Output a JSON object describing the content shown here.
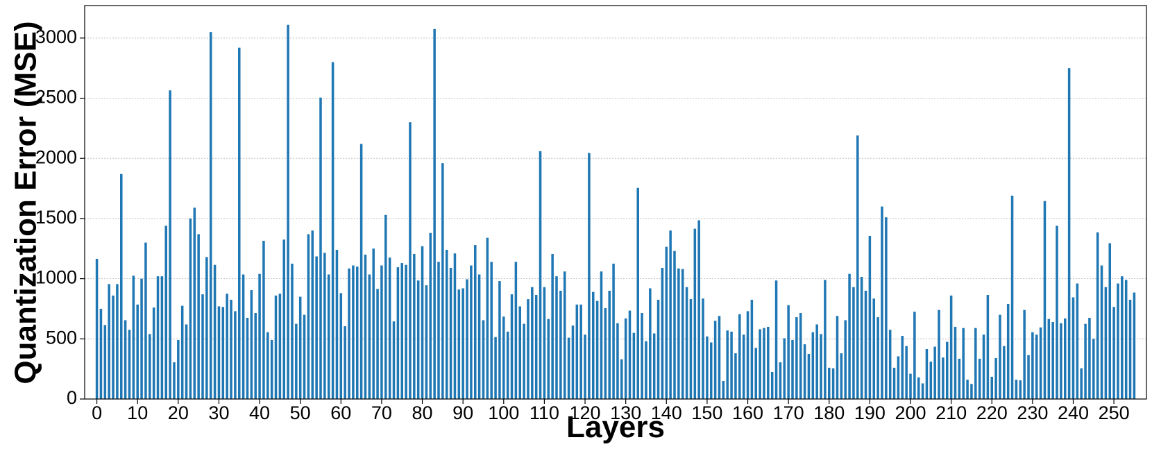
{
  "chart_data": {
    "type": "bar",
    "xlabel": "Layers",
    "ylabel": "Quantization Error (MSE)",
    "color": "#1f77b4",
    "grid": true,
    "xlim": [
      -3,
      258
    ],
    "ylim": [
      0,
      3270
    ],
    "xticks": [
      0,
      10,
      20,
      30,
      40,
      50,
      60,
      70,
      80,
      90,
      100,
      110,
      120,
      130,
      140,
      150,
      160,
      170,
      180,
      190,
      200,
      210,
      220,
      230,
      240,
      250
    ],
    "yticks": [
      0,
      500,
      1000,
      1500,
      2000,
      2500,
      3000
    ],
    "x": [
      0,
      1,
      2,
      3,
      4,
      5,
      6,
      7,
      8,
      9,
      10,
      11,
      12,
      13,
      14,
      15,
      16,
      17,
      18,
      19,
      20,
      21,
      22,
      23,
      24,
      25,
      26,
      27,
      28,
      29,
      30,
      31,
      32,
      33,
      34,
      35,
      36,
      37,
      38,
      39,
      40,
      41,
      42,
      43,
      44,
      45,
      46,
      47,
      48,
      49,
      50,
      51,
      52,
      53,
      54,
      55,
      56,
      57,
      58,
      59,
      60,
      61,
      62,
      63,
      64,
      65,
      66,
      67,
      68,
      69,
      70,
      71,
      72,
      73,
      74,
      75,
      76,
      77,
      78,
      79,
      80,
      81,
      82,
      83,
      84,
      85,
      86,
      87,
      88,
      89,
      90,
      91,
      92,
      93,
      94,
      95,
      96,
      97,
      98,
      99,
      100,
      101,
      102,
      103,
      104,
      105,
      106,
      107,
      108,
      109,
      110,
      111,
      112,
      113,
      114,
      115,
      116,
      117,
      118,
      119,
      120,
      121,
      122,
      123,
      124,
      125,
      126,
      127,
      128,
      129,
      130,
      131,
      132,
      133,
      134,
      135,
      136,
      137,
      138,
      139,
      140,
      141,
      142,
      143,
      144,
      145,
      146,
      147,
      148,
      149,
      150,
      151,
      152,
      153,
      154,
      155,
      156,
      157,
      158,
      159,
      160,
      161,
      162,
      163,
      164,
      165,
      166,
      167,
      168,
      169,
      170,
      171,
      172,
      173,
      174,
      175,
      176,
      177,
      178,
      179,
      180,
      181,
      182,
      183,
      184,
      185,
      186,
      187,
      188,
      189,
      190,
      191,
      192,
      193,
      194,
      195,
      196,
      197,
      198,
      199,
      200,
      201,
      202,
      203,
      204,
      205,
      206,
      207,
      208,
      209,
      210,
      211,
      212,
      213,
      214,
      215,
      216,
      217,
      218,
      219,
      220,
      221,
      222,
      223,
      224,
      225,
      226,
      227,
      228,
      229,
      230,
      231,
      232,
      233,
      234,
      235,
      236,
      237,
      238,
      239,
      240,
      241,
      242,
      243,
      244,
      245,
      246,
      247,
      248,
      249,
      250,
      251,
      252,
      253,
      254,
      255
    ],
    "values": [
      1165,
      750,
      615,
      955,
      860,
      955,
      1870,
      655,
      575,
      1025,
      785,
      1000,
      1300,
      540,
      760,
      1020,
      1020,
      1440,
      2565,
      305,
      490,
      775,
      620,
      1500,
      1590,
      1370,
      870,
      1180,
      3050,
      1115,
      770,
      765,
      875,
      825,
      730,
      2920,
      1035,
      675,
      905,
      715,
      1040,
      1315,
      555,
      490,
      860,
      875,
      1325,
      3110,
      1125,
      625,
      850,
      700,
      1370,
      1400,
      1185,
      2505,
      1215,
      1035,
      2800,
      1240,
      880,
      605,
      1085,
      1110,
      1100,
      2120,
      1200,
      1035,
      1250,
      915,
      1110,
      1530,
      1175,
      645,
      1095,
      1130,
      1115,
      2300,
      1205,
      985,
      1270,
      945,
      1380,
      3075,
      1140,
      1960,
      1240,
      1090,
      1210,
      910,
      920,
      995,
      1110,
      1280,
      1035,
      655,
      1340,
      1140,
      515,
      980,
      685,
      560,
      870,
      1140,
      770,
      625,
      830,
      930,
      865,
      2060,
      930,
      665,
      1205,
      1020,
      900,
      1060,
      510,
      610,
      785,
      785,
      535,
      2045,
      890,
      815,
      1060,
      755,
      900,
      1125,
      630,
      330,
      670,
      735,
      550,
      1755,
      715,
      480,
      920,
      545,
      825,
      1090,
      1265,
      1400,
      1230,
      1085,
      1080,
      930,
      830,
      1415,
      1485,
      835,
      520,
      470,
      650,
      690,
      150,
      570,
      560,
      380,
      705,
      535,
      730,
      825,
      425,
      580,
      590,
      600,
      225,
      985,
      305,
      505,
      780,
      490,
      680,
      715,
      455,
      375,
      555,
      620,
      540,
      990,
      260,
      255,
      690,
      380,
      655,
      1040,
      930,
      2190,
      1015,
      900,
      1355,
      835,
      680,
      1600,
      1510,
      575,
      260,
      355,
      525,
      440,
      210,
      725,
      180,
      130,
      415,
      310,
      435,
      740,
      345,
      475,
      860,
      600,
      335,
      590,
      160,
      125,
      590,
      335,
      535,
      865,
      185,
      340,
      700,
      440,
      790,
      1690,
      160,
      155,
      740,
      365,
      555,
      535,
      595,
      1645,
      665,
      640,
      1440,
      630,
      670,
      2750,
      845,
      960,
      255,
      625,
      675,
      500,
      1385,
      1110,
      930,
      1295,
      765,
      960,
      1020,
      990,
      825,
      885
    ]
  }
}
